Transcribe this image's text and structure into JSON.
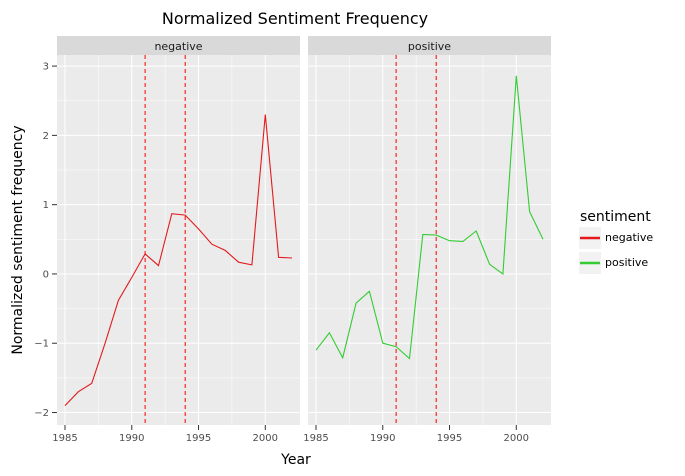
{
  "chart_data": {
    "type": "line",
    "title": "Normalized Sentiment Frequency",
    "xlabel": "Year",
    "ylabel": "Normalized sentiment frequency",
    "xlim": [
      1984.4,
      2002.6
    ],
    "ylim": [
      -2.18,
      3.16
    ],
    "x_ticks": [
      1985,
      1990,
      1995,
      2000
    ],
    "y_ticks": [
      -2,
      -1,
      0,
      1,
      2,
      3
    ],
    "y_tick_labels": [
      "−2",
      "−1",
      "0",
      "1",
      "2",
      "3"
    ],
    "grid": true,
    "reference_lines": {
      "x": [
        1991,
        1994
      ],
      "color": "#ff0000",
      "style": "dashed"
    },
    "legend": {
      "title": "sentiment",
      "position": "right",
      "entries": [
        {
          "label": "negative",
          "color": "#e41a1c"
        },
        {
          "label": "positive",
          "color": "#33cc33"
        }
      ]
    },
    "series": [
      {
        "name": "negative",
        "facet": "negative",
        "color": "#e41a1c",
        "x": [
          1985,
          1986,
          1987,
          1988,
          1989,
          1990,
          1991,
          1992,
          1993,
          1994,
          1995,
          1996,
          1997,
          1998,
          1999,
          2000,
          2001,
          2002
        ],
        "values": [
          -1.9,
          -1.7,
          -1.58,
          -1.0,
          -0.38,
          -0.05,
          0.29,
          0.12,
          0.87,
          0.85,
          0.65,
          0.43,
          0.34,
          0.17,
          0.13,
          2.3,
          0.24,
          0.23
        ]
      },
      {
        "name": "positive",
        "facet": "positive",
        "color": "#33cc33",
        "x": [
          1985,
          1986,
          1987,
          1988,
          1989,
          1990,
          1991,
          1992,
          1993,
          1994,
          1995,
          1996,
          1997,
          1998,
          1999,
          2000,
          2001,
          2002
        ],
        "values": [
          -1.1,
          -0.85,
          -1.21,
          -0.42,
          -0.25,
          -1.0,
          -1.05,
          -1.22,
          0.57,
          0.56,
          0.48,
          0.47,
          0.62,
          0.14,
          0.0,
          2.86,
          0.9,
          0.5
        ]
      }
    ],
    "facets": [
      "negative",
      "positive"
    ]
  }
}
